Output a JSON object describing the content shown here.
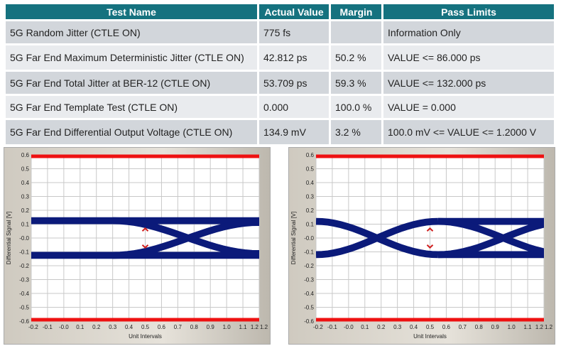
{
  "table": {
    "headers": [
      "Test Name",
      "Actual Value",
      "Margin",
      "Pass Limits"
    ],
    "rows": [
      {
        "name": "5G Random Jitter (CTLE ON)",
        "value": "775 fs",
        "margin": "",
        "limits": "Information Only"
      },
      {
        "name": "5G Far End Maximum Deterministic Jitter (CTLE ON)",
        "value": "42.812 ps",
        "margin": "50.2 %",
        "limits": "VALUE <= 86.000 ps"
      },
      {
        "name": "5G Far End Total Jitter at BER-12 (CTLE ON)",
        "value": "53.709 ps",
        "margin": "59.3 %",
        "limits": "VALUE <= 132.000 ps"
      },
      {
        "name": "5G Far End Template Test (CTLE ON)",
        "value": "0.000",
        "margin": "100.0 %",
        "limits": "VALUE = 0.000"
      },
      {
        "name": "5G Far End Differential Output Voltage (CTLE ON)",
        "value": "134.9 mV",
        "margin": "3.2 %",
        "limits": "100.0 mV <= VALUE <= 1.2000 V"
      }
    ]
  },
  "chart_data": [
    {
      "type": "line",
      "title": "",
      "xlabel": "Unit Intervals",
      "ylabel": "Differential Signal [V]",
      "xlim": [
        -0.2,
        1.2
      ],
      "ylim": [
        -0.6,
        0.6
      ],
      "xticks": [
        "-0.2",
        "-0.1",
        "-0.0",
        "0.1",
        "0.2",
        "0.3",
        "0.4",
        "0.5",
        "0.6",
        "0.7",
        "0.8",
        "0.9",
        "1.0",
        "1.1",
        "1.2",
        "1.2"
      ],
      "yticks": [
        "0.6",
        "0.5",
        "0.4",
        "0.3",
        "0.2",
        "0.1",
        "-0.0",
        "-0.1",
        "-0.2",
        "-0.3",
        "-0.4",
        "-0.5",
        "-0.6"
      ],
      "limit_lines": [
        0.59,
        -0.59
      ],
      "eye_crossings_ui": [
        0.97
      ],
      "eye_level_v": 0.125,
      "grid": true
    },
    {
      "type": "line",
      "title": "",
      "xlabel": "Unit Intervals",
      "ylabel": "Differential Signal [V]",
      "xlim": [
        -0.2,
        1.2
      ],
      "ylim": [
        -0.6,
        0.6
      ],
      "xticks": [
        "-0.2",
        "-0.1",
        "-0.0",
        "0.1",
        "0.2",
        "0.3",
        "0.4",
        "0.5",
        "0.6",
        "0.7",
        "0.8",
        "0.9",
        "1.0",
        "1.1",
        "1.2",
        "1.2"
      ],
      "yticks": [
        "0.6",
        "0.5",
        "0.4",
        "0.3",
        "0.2",
        "0.1",
        "-0.0",
        "-0.1",
        "-0.2",
        "-0.3",
        "-0.4",
        "-0.5",
        "-0.6"
      ],
      "limit_lines": [
        0.59,
        -0.59
      ],
      "eye_crossings_ui": [
        0.0,
        1.0
      ],
      "eye_level_v": 0.12,
      "grid": true
    }
  ],
  "colors": {
    "header": "#15727f",
    "trace": "#0b1a7a",
    "limit": "#ee1111"
  }
}
